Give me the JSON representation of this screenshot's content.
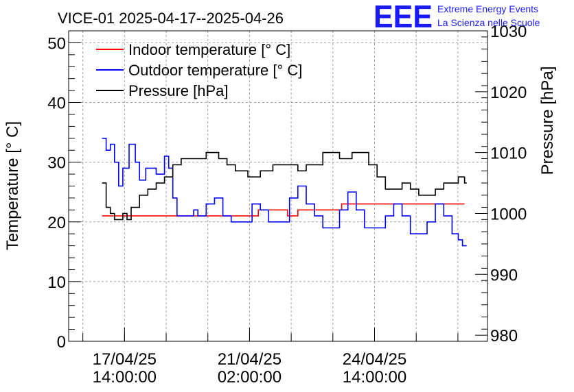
{
  "logo": {
    "mark": "EEE",
    "line1": "Extreme Energy Events",
    "line2": "La Scienza nelle Scuole",
    "color": "#1a1aff"
  },
  "chart_data": {
    "type": "line",
    "title": "VICE-01 2025-04-17--2025-04-26",
    "ylabel": "Temperature [° C]",
    "y2label": "Pressure [hPa]",
    "ylim": [
      0,
      52
    ],
    "y2lim": [
      979,
      1030
    ],
    "yticks": [
      0,
      10,
      20,
      30,
      40,
      50
    ],
    "y2ticks": [
      980,
      990,
      1000,
      1010,
      1020,
      1030
    ],
    "xlim": [
      0,
      10.05
    ],
    "xticks": [
      {
        "x": 1.34,
        "date": "17/04/25",
        "time": "14:00:00"
      },
      {
        "x": 4.34,
        "date": "21/04/25",
        "time": "02:00:00"
      },
      {
        "x": 7.34,
        "date": "24/04/25",
        "time": "14:00:00"
      }
    ],
    "grid": true,
    "legend_position": "top-left",
    "series": [
      {
        "name": "Indoor temperature [° C]",
        "axis": "left",
        "color": "#ff0000",
        "points": [
          [
            0.8,
            21
          ],
          [
            4.5,
            21
          ],
          [
            4.55,
            22
          ],
          [
            5.2,
            22
          ],
          [
            5.25,
            21
          ],
          [
            5.4,
            21
          ],
          [
            5.5,
            22
          ],
          [
            6.5,
            22
          ],
          [
            6.55,
            23
          ],
          [
            9.5,
            23
          ]
        ]
      },
      {
        "name": "Outdoor temperature [° C]",
        "axis": "left",
        "color": "#0000ff",
        "points": [
          [
            0.8,
            34
          ],
          [
            0.9,
            32
          ],
          [
            1.0,
            33
          ],
          [
            1.1,
            30
          ],
          [
            1.2,
            26
          ],
          [
            1.3,
            29
          ],
          [
            1.45,
            33
          ],
          [
            1.6,
            30
          ],
          [
            1.7,
            27
          ],
          [
            1.85,
            29
          ],
          [
            2.0,
            29
          ],
          [
            2.1,
            28
          ],
          [
            2.3,
            31
          ],
          [
            2.4,
            29
          ],
          [
            2.5,
            24
          ],
          [
            2.6,
            21
          ],
          [
            2.9,
            21
          ],
          [
            3.0,
            22
          ],
          [
            3.1,
            21
          ],
          [
            3.3,
            23
          ],
          [
            3.5,
            24
          ],
          [
            3.7,
            21
          ],
          [
            3.9,
            20
          ],
          [
            4.2,
            20
          ],
          [
            4.4,
            23
          ],
          [
            4.6,
            22
          ],
          [
            4.8,
            20
          ],
          [
            5.0,
            20
          ],
          [
            5.3,
            24
          ],
          [
            5.5,
            26
          ],
          [
            5.7,
            23
          ],
          [
            5.9,
            21
          ],
          [
            6.1,
            19
          ],
          [
            6.3,
            19
          ],
          [
            6.5,
            22
          ],
          [
            6.7,
            25
          ],
          [
            6.9,
            22
          ],
          [
            7.1,
            19
          ],
          [
            7.4,
            19
          ],
          [
            7.6,
            21
          ],
          [
            7.8,
            23
          ],
          [
            8.0,
            21
          ],
          [
            8.2,
            18
          ],
          [
            8.4,
            18
          ],
          [
            8.6,
            20
          ],
          [
            8.8,
            23
          ],
          [
            9.0,
            21
          ],
          [
            9.2,
            18
          ],
          [
            9.35,
            17
          ],
          [
            9.45,
            16
          ],
          [
            9.55,
            16
          ]
        ]
      },
      {
        "name": "Pressure [hPa]",
        "axis": "right",
        "color": "#000000",
        "points": [
          [
            0.8,
            1005
          ],
          [
            0.9,
            1001
          ],
          [
            1.0,
            1000
          ],
          [
            1.1,
            999
          ],
          [
            1.3,
            1000
          ],
          [
            1.4,
            999
          ],
          [
            1.5,
            1001
          ],
          [
            1.7,
            1003
          ],
          [
            1.9,
            1004
          ],
          [
            2.1,
            1005
          ],
          [
            2.3,
            1006
          ],
          [
            2.5,
            1008
          ],
          [
            2.7,
            1009
          ],
          [
            3.0,
            1009
          ],
          [
            3.3,
            1010
          ],
          [
            3.6,
            1009
          ],
          [
            3.8,
            1008
          ],
          [
            4.0,
            1007
          ],
          [
            4.3,
            1006
          ],
          [
            4.6,
            1007
          ],
          [
            4.9,
            1008
          ],
          [
            5.2,
            1008
          ],
          [
            5.5,
            1007
          ],
          [
            5.7,
            1008
          ],
          [
            5.9,
            1008
          ],
          [
            6.1,
            1010
          ],
          [
            6.3,
            1010
          ],
          [
            6.5,
            1009
          ],
          [
            6.8,
            1010
          ],
          [
            7.0,
            1010
          ],
          [
            7.2,
            1008
          ],
          [
            7.4,
            1006
          ],
          [
            7.6,
            1004
          ],
          [
            7.8,
            1004
          ],
          [
            8.0,
            1005
          ],
          [
            8.2,
            1004
          ],
          [
            8.4,
            1003
          ],
          [
            8.6,
            1003
          ],
          [
            8.8,
            1004
          ],
          [
            9.0,
            1005
          ],
          [
            9.2,
            1005
          ],
          [
            9.35,
            1006
          ],
          [
            9.5,
            1005
          ],
          [
            9.55,
            1005
          ]
        ]
      }
    ]
  }
}
